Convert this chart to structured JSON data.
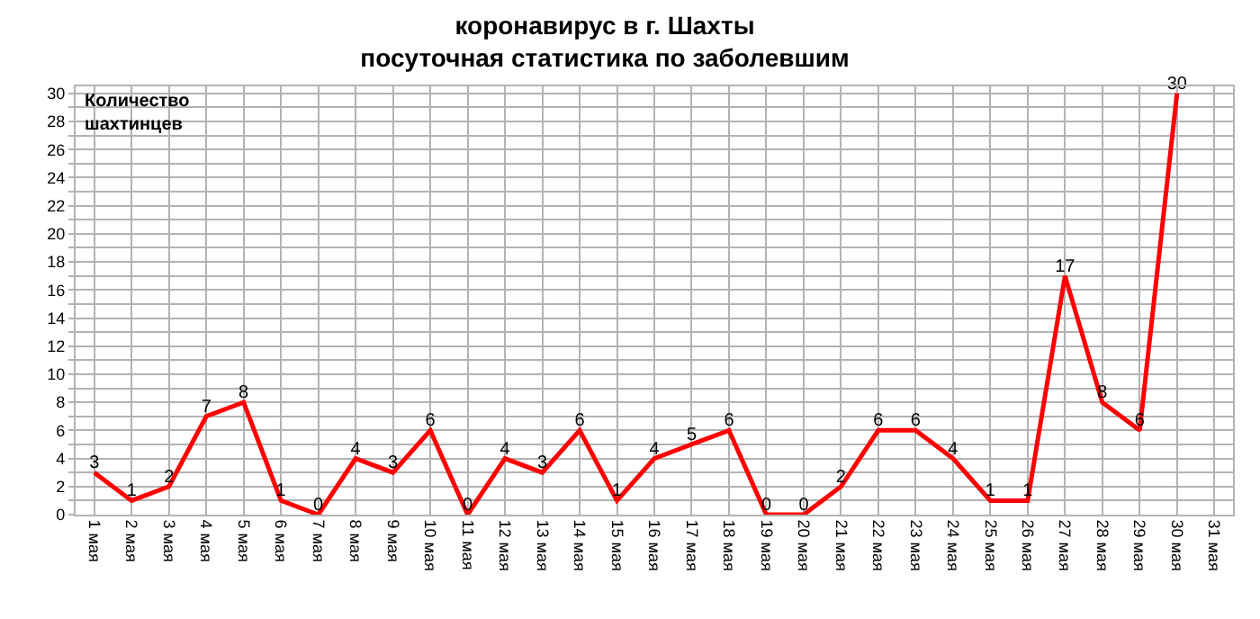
{
  "chart_data": {
    "type": "line",
    "title": "коронавирус в г. Шахты",
    "subtitle": "посуточная статистика по заболевшим",
    "ylabel": "Количество шахтинцев",
    "categories": [
      "1 мая",
      "2 мая",
      "3 мая",
      "4 мая",
      "5 мая",
      "6 мая",
      "7 мая",
      "8 мая",
      "9 мая",
      "10 мая",
      "11 мая",
      "12 мая",
      "13 мая",
      "14 мая",
      "15 мая",
      "16 мая",
      "17 мая",
      "18 мая",
      "19 мая",
      "20 мая",
      "21 мая",
      "22 мая",
      "23 мая",
      "24 мая",
      "25 мая",
      "26 мая",
      "27 мая",
      "28 мая",
      "29 мая",
      "30 мая",
      "31 мая"
    ],
    "series": [
      {
        "color": "#ff0000",
        "values": [
          3,
          1,
          2,
          7,
          8,
          1,
          0,
          4,
          3,
          6,
          0,
          4,
          3,
          6,
          1,
          4,
          5,
          6,
          0,
          0,
          2,
          6,
          6,
          4,
          1,
          1,
          17,
          8,
          6,
          30,
          null
        ]
      }
    ],
    "ylim": [
      0,
      30.5
    ],
    "yticks": [
      0,
      {
        "value": 1,
        "label": null
      },
      2,
      {
        "value": 3,
        "label": null
      },
      4,
      {
        "value": 5,
        "label": null
      },
      6,
      {
        "value": 7,
        "label": null
      },
      8,
      {
        "value": 9,
        "label": null
      },
      10,
      {
        "value": 11,
        "label": null
      },
      12,
      {
        "value": 13,
        "label": null
      },
      14,
      {
        "value": 15,
        "label": null
      },
      16,
      {
        "value": 17,
        "label": null
      },
      18,
      {
        "value": 19,
        "label": null
      },
      20,
      {
        "value": 21,
        "label": null
      },
      22,
      {
        "value": 23,
        "label": null
      },
      24,
      {
        "value": 25,
        "label": null
      },
      26,
      {
        "value": 27,
        "label": null
      },
      28,
      {
        "value": 29,
        "label": null
      },
      30
    ],
    "grid": true,
    "marker": "none",
    "line_style": "solid",
    "data_labels": true
  }
}
